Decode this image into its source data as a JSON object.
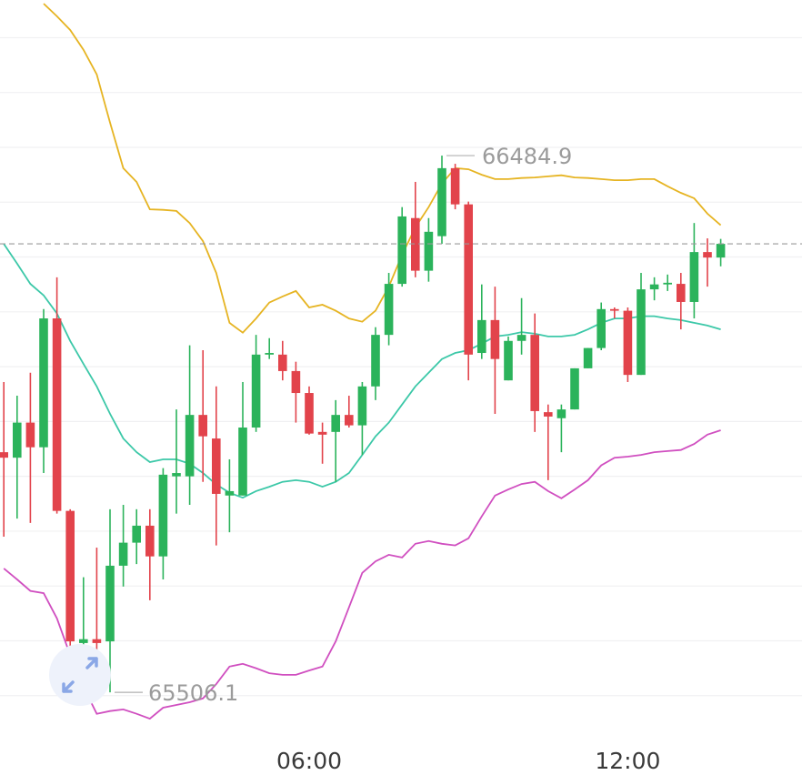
{
  "chart_data": {
    "type": "candlestick",
    "categories": [
      null,
      null,
      null,
      null,
      null,
      null,
      null,
      null,
      null,
      null,
      null,
      null,
      null,
      null,
      null,
      null,
      null,
      null,
      null,
      null,
      null,
      null,
      null,
      "06:00",
      null,
      null,
      null,
      null,
      null,
      null,
      null,
      null,
      null,
      null,
      null,
      null,
      null,
      null,
      null,
      null,
      null,
      null,
      null,
      null,
      null,
      null,
      null,
      "12:00",
      null,
      null,
      null,
      null,
      null,
      null,
      null
    ],
    "open": [
      65944,
      65934,
      65998,
      65953,
      66188,
      65837,
      65596,
      65603,
      65599,
      65737,
      65779,
      65810,
      65754,
      65900,
      65900,
      66012,
      65969,
      65865,
      65865,
      65989,
      66122,
      66122,
      66092,
      66052,
      65981,
      65981,
      66012,
      65993,
      66064,
      66158,
      66251,
      66371,
      66275,
      66338,
      66462,
      66396,
      66125,
      66185,
      66075,
      66147,
      66158,
      66017,
      66006,
      66022,
      66097,
      66134,
      66205,
      66202,
      66085,
      66241,
      66250,
      66251,
      66218,
      66309,
      66299
    ],
    "high": [
      66072,
      66047,
      66089,
      66205,
      66263,
      65840,
      65716,
      65770,
      65840,
      65848,
      65840,
      65840,
      65915,
      66022,
      66139,
      66130,
      66064,
      65931,
      66072,
      66158,
      66152,
      66147,
      66109,
      66064,
      65998,
      66039,
      66047,
      66072,
      66172,
      66271,
      66391,
      66437,
      66371,
      66484.9,
      66470,
      66401,
      66250,
      66246,
      66155,
      66225,
      66197,
      66031,
      66031,
      66097,
      66134,
      66217,
      66208,
      66208,
      66271,
      66263,
      66268,
      66271,
      66362,
      66334,
      66333
    ],
    "low": [
      65790,
      65823,
      65815,
      65906,
      65832,
      65566,
      65574,
      65574,
      65506.1,
      65699,
      65740,
      65674,
      65712,
      65832,
      65848,
      65890,
      65774,
      65798,
      65865,
      65981,
      66114,
      66075,
      65998,
      65976,
      65923,
      65890,
      65989,
      65939,
      66039,
      66139,
      66246,
      66263,
      66255,
      66324,
      66387,
      66075,
      66114,
      66014,
      66075,
      66122,
      65981,
      65893,
      65944,
      66022,
      66097,
      66130,
      66188,
      66072,
      66085,
      66221,
      66238,
      66168,
      66188,
      66246,
      66283
    ],
    "close": [
      65934,
      65998,
      65953,
      66188,
      65837,
      65599,
      65603,
      65596,
      65737,
      65779,
      65810,
      65754,
      65903,
      65906,
      66012,
      65973,
      65868,
      65873,
      65989,
      66122,
      66125,
      66092,
      66052,
      65978,
      65976,
      66012,
      65993,
      66064,
      66158,
      66251,
      66374,
      66275,
      66346,
      66462,
      66396,
      66122,
      66185,
      66114,
      66147,
      66158,
      66019,
      66009,
      66022,
      66097,
      66134,
      66205,
      66202,
      66085,
      66241,
      66250,
      66253,
      66218,
      66309,
      66299,
      66324
    ],
    "up_color": "#2bb35b",
    "down_color": "#e2434b",
    "overlays": [
      {
        "color": "#e6b422",
        "values": [
          null,
          null,
          null,
          66762,
          66739,
          66714,
          66678,
          66633,
          66545,
          66462,
          66437,
          66387,
          66386,
          66384,
          66362,
          66329,
          66271,
          66180,
          66162,
          66188,
          66217,
          66228,
          66238,
          66208,
          66213,
          66202,
          66188,
          66182,
          66202,
          66246,
          66304,
          66354,
          66391,
          66434,
          66462,
          66460,
          66450,
          66442,
          66442,
          66444,
          66445,
          66447,
          66449,
          66445,
          66444,
          66442,
          66440,
          66440,
          66442,
          66442,
          66429,
          66417,
          66407,
          66379,
          66358
        ]
      },
      {
        "color": "#3cc8a8",
        "values": [
          66324,
          66288,
          66251,
          66230,
          66197,
          66147,
          66105,
          66064,
          66014,
          65969,
          65944,
          65926,
          65931,
          65931,
          65923,
          65906,
          65885,
          65870,
          65861,
          65873,
          65881,
          65890,
          65893,
          65890,
          65881,
          65890,
          65906,
          65939,
          65973,
          65998,
          66031,
          66064,
          66089,
          66114,
          66125,
          66130,
          66142,
          66155,
          66158,
          66163,
          66160,
          66155,
          66155,
          66158,
          66168,
          66180,
          66188,
          66188,
          66192,
          66192,
          66188,
          66185,
          66180,
          66175,
          66168
        ]
      },
      {
        "color": "#d04fc0",
        "values": [
          65732,
          65712,
          65691,
          65687,
          65641,
          65574,
          65516,
          65467,
          65472,
          65475,
          65467,
          65458,
          65478,
          65483,
          65488,
          65495,
          65521,
          65553,
          65558,
          65550,
          65541,
          65538,
          65538,
          65546,
          65553,
          65599,
          65661,
          65724,
          65745,
          65757,
          65752,
          65777,
          65782,
          65777,
          65774,
          65787,
          65827,
          65865,
          65876,
          65886,
          65890,
          65873,
          65860,
          65876,
          65893,
          65920,
          65934,
          65936,
          65939,
          65944,
          65946,
          65948,
          65959,
          65976,
          65984
        ]
      }
    ],
    "ylim": [
      65408.4,
      66768.7
    ],
    "yticks": [
      65500,
      65600,
      65700,
      65800,
      65900,
      66000,
      66100,
      66200,
      66300,
      66400,
      66500,
      66600,
      66700
    ],
    "grid": true
  }
}
